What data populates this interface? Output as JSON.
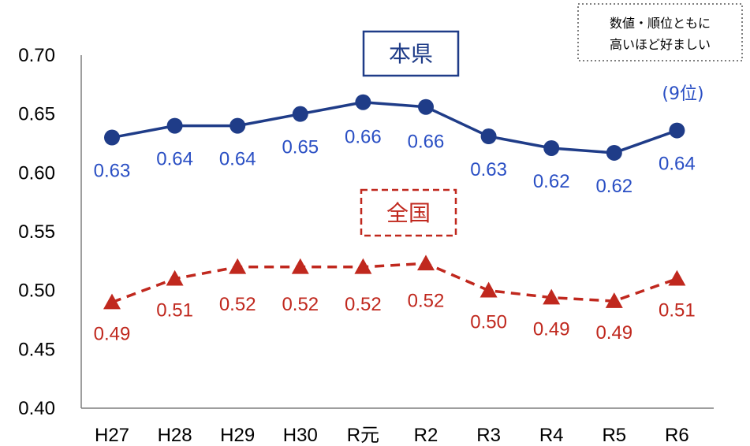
{
  "chart_data": {
    "type": "line",
    "categories": [
      "H27",
      "H28",
      "H29",
      "H30",
      "R元",
      "R2",
      "R3",
      "R4",
      "R5",
      "R6"
    ],
    "ylim": [
      0.4,
      0.7
    ],
    "yticks": [
      "0.40",
      "0.45",
      "0.50",
      "0.55",
      "0.60",
      "0.65",
      "0.70"
    ],
    "grid": false,
    "series": [
      {
        "name": "本県",
        "color": "#1f3c88",
        "style": "solid",
        "marker": "circle",
        "values": [
          0.63,
          0.64,
          0.64,
          0.65,
          0.66,
          0.656,
          0.631,
          0.621,
          0.617,
          0.636
        ],
        "labels": [
          "0.63",
          "0.64",
          "0.64",
          "0.65",
          "0.66",
          "0.66",
          "0.63",
          "0.62",
          "0.62",
          "0.64"
        ],
        "rank_note": "(9位)"
      },
      {
        "name": "全国",
        "color": "#c0281e",
        "style": "dashed",
        "marker": "triangle",
        "values": [
          0.49,
          0.51,
          0.52,
          0.52,
          0.52,
          0.523,
          0.5,
          0.494,
          0.491,
          0.51
        ],
        "labels": [
          "0.49",
          "0.51",
          "0.52",
          "0.52",
          "0.52",
          "0.52",
          "0.50",
          "0.49",
          "0.49",
          "0.51"
        ]
      }
    ],
    "note": [
      "数値・順位ともに",
      "高いほど好ましい"
    ]
  }
}
